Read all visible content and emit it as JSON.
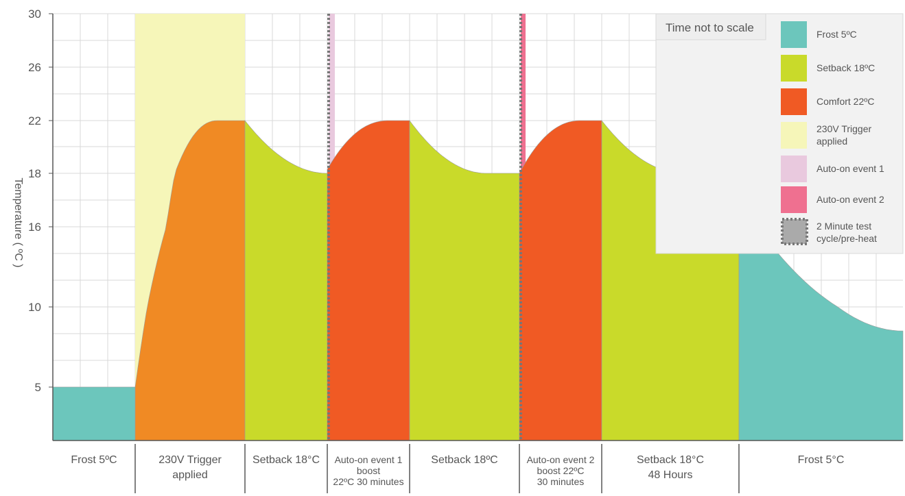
{
  "chart_data": {
    "type": "area",
    "title": "",
    "note": "Time not to scale",
    "ylabel": "Temperature ( ºC )",
    "ylim": [
      0,
      30
    ],
    "yticks": [
      5,
      10,
      16,
      18,
      22,
      26,
      30
    ],
    "grid": true,
    "legend_position": "top-right",
    "colors": {
      "frost": "#6cc6bc",
      "setback": "#c9da2a",
      "comfort": "#f05a24",
      "trigger_heat": "#f08a24",
      "trigger_band": "#f6f6b9",
      "auto_on_1": "#e9c9de",
      "auto_on_2": "#ef7090",
      "test_cycle": "#777777"
    },
    "phases": [
      {
        "label": [
          "Frost 5ºC"
        ],
        "mode": "frost",
        "start_temp": 5,
        "end_temp": 5
      },
      {
        "label": [
          "230V Trigger",
          "applied"
        ],
        "mode": "trigger_heat",
        "start_temp": 5,
        "end_temp": 22
      },
      {
        "label": [
          "Setback 18°C"
        ],
        "mode": "setback",
        "start_temp": 22,
        "end_temp": 18
      },
      {
        "label": [
          "Auto-on event 1",
          "boost",
          "22ºC 30 minutes"
        ],
        "mode": "comfort",
        "start_temp": 18.3,
        "end_temp": 22
      },
      {
        "label": [
          "Setback 18ºC"
        ],
        "mode": "setback",
        "start_temp": 22,
        "end_temp": 18
      },
      {
        "label": [
          "Auto-on event 2",
          "boost 22ºC",
          "30 minutes"
        ],
        "mode": "comfort",
        "start_temp": 18,
        "end_temp": 22
      },
      {
        "label": [
          "Setback 18°C",
          "48 Hours"
        ],
        "mode": "setback",
        "start_temp": 22,
        "end_temp": 18
      },
      {
        "label": [
          "Frost 5°C"
        ],
        "mode": "frost",
        "start_temp": 18,
        "end_temp": 8.5
      }
    ],
    "legend": [
      {
        "label": [
          "Frost 5ºC"
        ],
        "color_key": "frost"
      },
      {
        "label": [
          "Setback 18ºC"
        ],
        "color_key": "setback"
      },
      {
        "label": [
          "Comfort 22ºC"
        ],
        "color_key": "comfort"
      },
      {
        "label": [
          "230V Trigger",
          "applied"
        ],
        "color_key": "trigger_band"
      },
      {
        "label": [
          "Auto-on event 1"
        ],
        "color_key": "auto_on_1"
      },
      {
        "label": [
          "Auto-on event 2"
        ],
        "color_key": "auto_on_2"
      },
      {
        "label": [
          "2 Minute test",
          "cycle/pre-heat"
        ],
        "color_key": "test_cycle"
      }
    ]
  }
}
